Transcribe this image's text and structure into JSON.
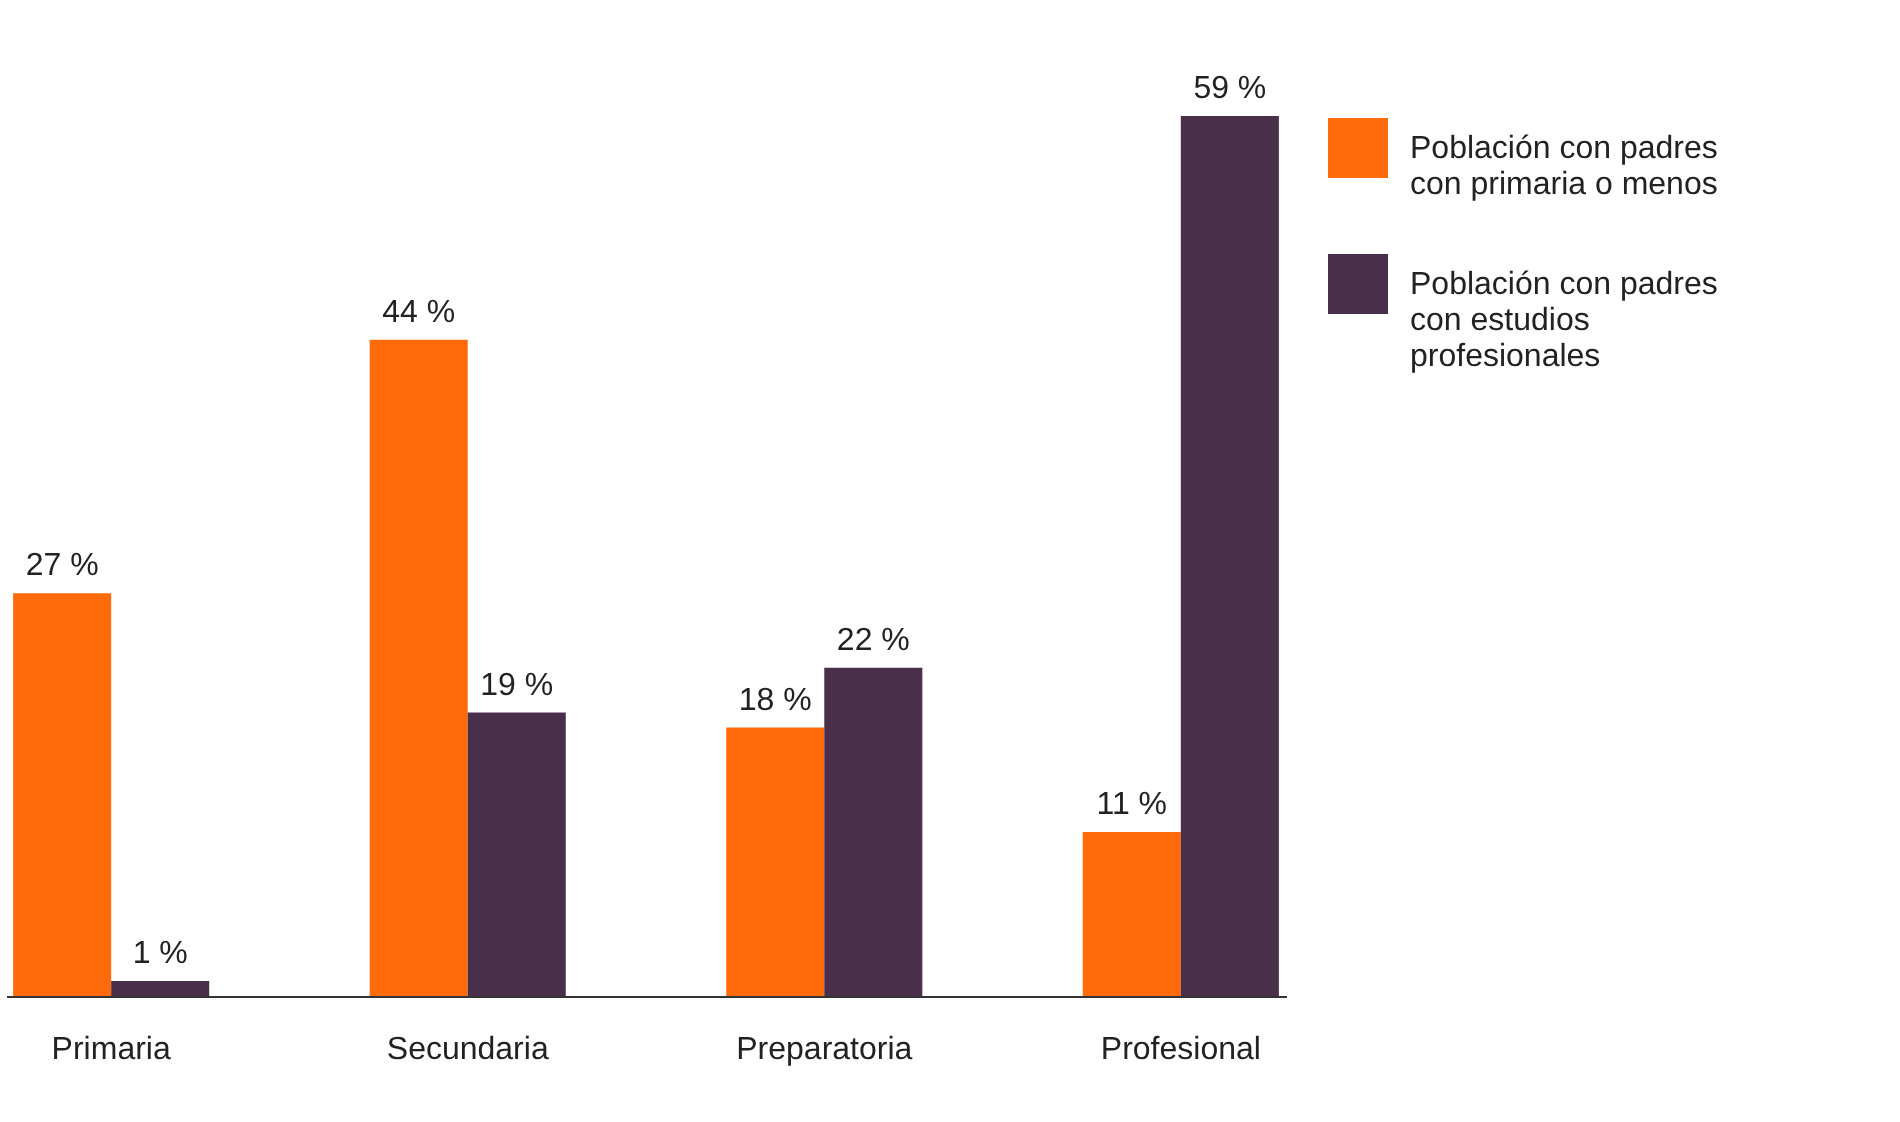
{
  "chart_data": {
    "type": "bar",
    "categories": [
      "Primaria",
      "Secundaria",
      "Preparatoria",
      "Profesional"
    ],
    "series": [
      {
        "name": "Población con padres con primaria o menos",
        "color": "#ff6b0b",
        "values": [
          27,
          44,
          18,
          11
        ],
        "value_labels": [
          "27 %",
          "44 %",
          "18 %",
          "11 %"
        ]
      },
      {
        "name": "Población con padres con estudios profesionales",
        "color": "#4a2f4a",
        "values": [
          1,
          19,
          22,
          59
        ],
        "value_labels": [
          "1 %",
          "19 %",
          "22 %",
          "59 %"
        ]
      }
    ],
    "legend": "top right"
  }
}
